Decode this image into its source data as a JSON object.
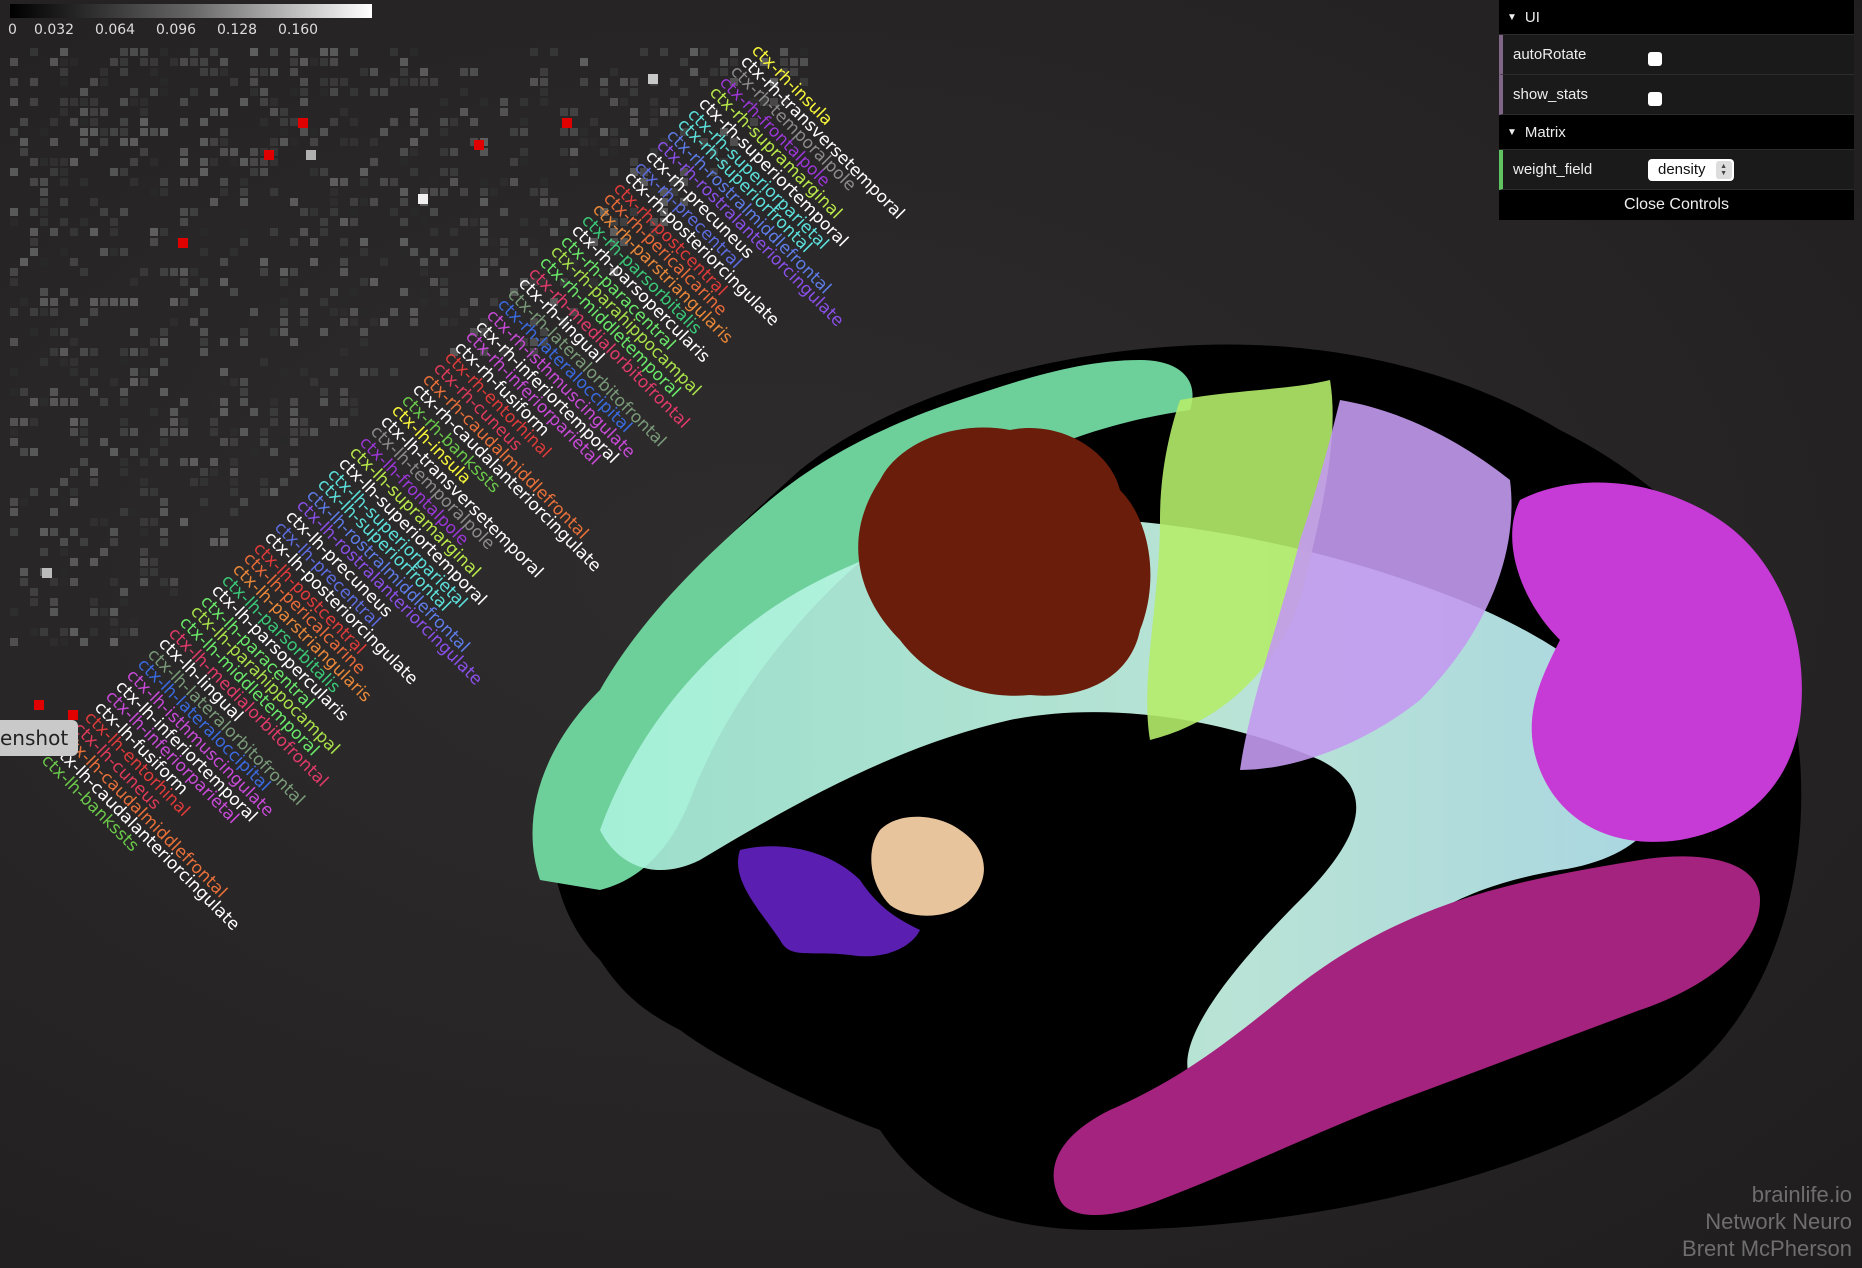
{
  "colorbar": {
    "ticks": [
      "0",
      "0.032",
      "0.064",
      "0.096",
      "0.128",
      "0.160"
    ],
    "min": 0,
    "max": 0.16
  },
  "matrix_labels": {
    "rh": [
      {
        "text": "ctx-rh-insula",
        "color": "#f7f53a"
      },
      {
        "text": "ctx-rh-transversetemporal",
        "color": "#ffffff"
      },
      {
        "text": "ctx-rh-temporalpole",
        "color": "#8c8c8c"
      },
      {
        "text": "ctx-rh-frontalpole",
        "color": "#9b37d6"
      },
      {
        "text": "ctx-rh-supramarginal",
        "color": "#b8e84a"
      },
      {
        "text": "ctx-rh-superiortemporal",
        "color": "#ffffff"
      },
      {
        "text": "ctx-rh-superiorparietal",
        "color": "#5ce0dc"
      },
      {
        "text": "ctx-rh-superiorfrontal",
        "color": "#5ce0dc"
      },
      {
        "text": "ctx-rh-rostralmiddlefrontal",
        "color": "#5d7ce8"
      },
      {
        "text": "ctx-rh-rostralanteriorcingulate",
        "color": "#8a4fe8"
      },
      {
        "text": "ctx-rh-precuneus",
        "color": "#ffffff"
      },
      {
        "text": "ctx-rh-precentral",
        "color": "#5d6ce0"
      },
      {
        "text": "ctx-rh-posteriorcingulate",
        "color": "#ffffff"
      },
      {
        "text": "ctx-rh-postcentral",
        "color": "#e03a3a"
      },
      {
        "text": "ctx-rh-pericalcarine",
        "color": "#e86a3a"
      },
      {
        "text": "ctx-rh-parstriangularis",
        "color": "#e8883a"
      },
      {
        "text": "ctx-rh-parsorbitalis",
        "color": "#3ac878"
      },
      {
        "text": "ctx-rh-parsopercularis",
        "color": "#ffffff"
      },
      {
        "text": "ctx-rh-paracentral",
        "color": "#6ae86a"
      },
      {
        "text": "ctx-rh-parahippocampal",
        "color": "#a8e04a"
      },
      {
        "text": "ctx-rh-middletemporal",
        "color": "#6ae86a"
      },
      {
        "text": "ctx-rh-medialorbitofrontal",
        "color": "#e03a6a"
      },
      {
        "text": "ctx-rh-lingual",
        "color": "#ffffff"
      },
      {
        "text": "ctx-rh-lateralorbitofrontal",
        "color": "#7a9a7a"
      },
      {
        "text": "ctx-rh-lateraloccipital",
        "color": "#3a6ae0"
      },
      {
        "text": "ctx-rh-isthmuscingulate",
        "color": "#c84ad8"
      },
      {
        "text": "ctx-rh-inferiortemporal",
        "color": "#ffffff"
      },
      {
        "text": "ctx-rh-inferiorparietal",
        "color": "#c84ad8"
      },
      {
        "text": "ctx-rh-fusiform",
        "color": "#ffffff"
      },
      {
        "text": "ctx-rh-entorhinal",
        "color": "#e03a3a"
      },
      {
        "text": "ctx-rh-cuneus",
        "color": "#e03a5a"
      },
      {
        "text": "ctx-rh-caudalmiddlefrontal",
        "color": "#e8703a"
      },
      {
        "text": "ctx-rh-caudalanteriorcingulate",
        "color": "#ffffff"
      },
      {
        "text": "ctx-rh-bankssts",
        "color": "#6ac84a"
      }
    ],
    "lh": [
      {
        "text": "ctx-lh-insula",
        "color": "#f7f53a"
      },
      {
        "text": "ctx-lh-transversetemporal",
        "color": "#ffffff"
      },
      {
        "text": "ctx-lh-temporalpole",
        "color": "#8c8c8c"
      },
      {
        "text": "ctx-lh-frontalpole",
        "color": "#9b37d6"
      },
      {
        "text": "ctx-lh-supramarginal",
        "color": "#b8e84a"
      },
      {
        "text": "ctx-lh-superiortemporal",
        "color": "#ffffff"
      },
      {
        "text": "ctx-lh-superiorparietal",
        "color": "#5ce0dc"
      },
      {
        "text": "ctx-lh-superiorfrontal",
        "color": "#5ce0dc"
      },
      {
        "text": "ctx-lh-rostralmiddlefrontal",
        "color": "#5d7ce8"
      },
      {
        "text": "ctx-lh-rostralanteriorcingulate",
        "color": "#8a4fe8"
      },
      {
        "text": "ctx-lh-precuneus",
        "color": "#ffffff"
      },
      {
        "text": "ctx-lh-precentral",
        "color": "#5d6ce0"
      },
      {
        "text": "ctx-lh-posteriorcingulate",
        "color": "#ffffff"
      },
      {
        "text": "ctx-lh-postcentral",
        "color": "#e03a3a"
      },
      {
        "text": "ctx-lh-pericalcarine",
        "color": "#e86a3a"
      },
      {
        "text": "ctx-lh-parstriangularis",
        "color": "#e8883a"
      },
      {
        "text": "ctx-lh-parsorbitalis",
        "color": "#3ac878"
      },
      {
        "text": "ctx-lh-parsopercularis",
        "color": "#ffffff"
      },
      {
        "text": "ctx-lh-paracentral",
        "color": "#6ae86a"
      },
      {
        "text": "ctx-lh-parahippocampal",
        "color": "#a8e04a"
      },
      {
        "text": "ctx-lh-middletemporal",
        "color": "#6ae86a"
      },
      {
        "text": "ctx-lh-medialorbitofrontal",
        "color": "#e03a6a"
      },
      {
        "text": "ctx-lh-lingual",
        "color": "#ffffff"
      },
      {
        "text": "ctx-lh-lateralorbitofrontal",
        "color": "#7a9a7a"
      },
      {
        "text": "ctx-lh-lateraloccipital",
        "color": "#3a6ae0"
      },
      {
        "text": "ctx-lh-isthmuscingulate",
        "color": "#c84ad8"
      },
      {
        "text": "ctx-lh-inferiortemporal",
        "color": "#ffffff"
      },
      {
        "text": "ctx-lh-inferiorparietal",
        "color": "#c84ad8"
      },
      {
        "text": "ctx-lh-fusiform",
        "color": "#ffffff"
      },
      {
        "text": "ctx-lh-entorhinal",
        "color": "#e03a3a"
      },
      {
        "text": "ctx-lh-cuneus",
        "color": "#e03a5a"
      },
      {
        "text": "ctx-lh-caudalmiddlefrontal",
        "color": "#e8703a"
      },
      {
        "text": "ctx-lh-caudalanteriorcingulate",
        "color": "#ffffff"
      },
      {
        "text": "ctx-lh-bankssts",
        "color": "#6ac84a"
      }
    ]
  },
  "screenshot_button": {
    "label": "enshot"
  },
  "gui": {
    "folders": [
      {
        "label": "UI"
      },
      {
        "label": "Matrix"
      }
    ],
    "ui_rows": [
      {
        "label": "autoRotate",
        "checked": false
      },
      {
        "label": "show_stats",
        "checked": false
      }
    ],
    "matrix_row": {
      "label": "weight_field",
      "value": "density"
    },
    "close_label": "Close Controls"
  },
  "credits": [
    "brainlife.io",
    "Network Neuro",
    "Brent McPherson"
  ],
  "colors": {
    "highlight_cell": "#e00000",
    "gui_ui_border": "#806787",
    "gui_matrix_border": "#5fc45f"
  }
}
